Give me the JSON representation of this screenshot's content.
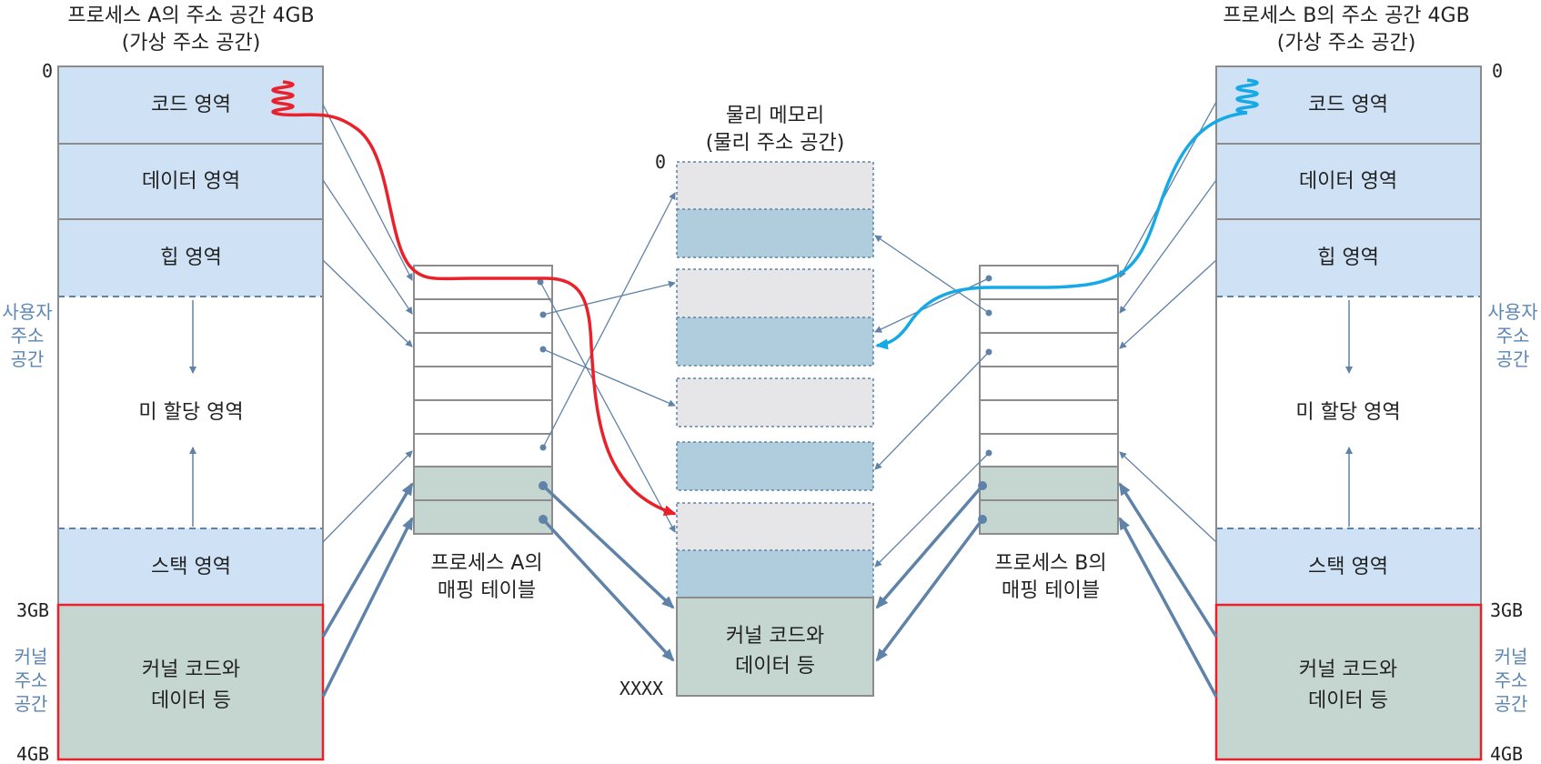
{
  "process_a": {
    "title": "프로세스 A의 주소 공간 4GB",
    "subtitle": "(가상 주소 공간)",
    "regions": {
      "code": "코드 영역",
      "data": "데이터 영역",
      "heap": "힙 영역",
      "unallocated": "미 할당 영역",
      "stack": "스택 영역",
      "kernel_line1": "커널 코드와",
      "kernel_line2": "데이터 등"
    },
    "addr_top": "0",
    "addr_3gb": "3GB",
    "addr_4gb": "4GB",
    "user_space": [
      "사용자",
      "주소",
      "공간"
    ],
    "kernel_space": [
      "커널",
      "주소",
      "공간"
    ]
  },
  "process_b": {
    "title": "프로세스 B의 주소 공간 4GB",
    "subtitle": "(가상 주소 공간)",
    "regions": {
      "code": "코드 영역",
      "data": "데이터 영역",
      "heap": "힙 영역",
      "unallocated": "미 할당 영역",
      "stack": "스택 영역",
      "kernel_line1": "커널 코드와",
      "kernel_line2": "데이터 등"
    },
    "addr_top": "0",
    "addr_3gb": "3GB",
    "addr_4gb": "4GB",
    "user_space": [
      "사용자",
      "주소",
      "공간"
    ],
    "kernel_space": [
      "커널",
      "주소",
      "공간"
    ]
  },
  "physical_memory": {
    "title": "물리 메모리",
    "subtitle": "(물리 주소 공간)",
    "addr_top": "0",
    "addr_bottom": "XXXX",
    "kernel_line1": "커널 코드와",
    "kernel_line2": "데이터 등"
  },
  "mapping_table_a": {
    "line1": "프로세스 A의",
    "line2": "매핑 테이블"
  },
  "mapping_table_b": {
    "line1": "프로세스 B의",
    "line2": "매핑 테이블"
  },
  "colors": {
    "region_blue": "#cfe2f5",
    "kernel_green": "#c5d5cf",
    "phys_gray": "#e6e6e8",
    "phys_blue": "#afcddc",
    "arrow": "#5f82a8",
    "highlight_a": "#e8212b",
    "highlight_b": "#16a9e6",
    "kernel_border": "#e8212b",
    "side_label": "#5b86b4"
  }
}
